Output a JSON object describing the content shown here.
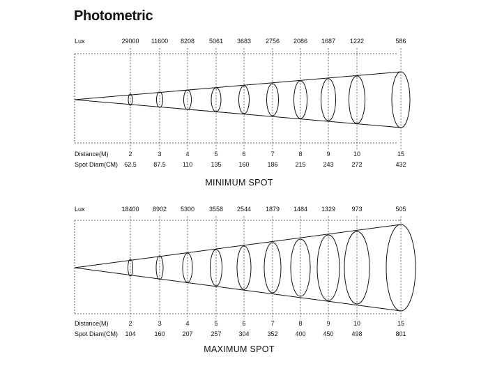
{
  "title": "Photometric",
  "row_labels": {
    "lux": "Lux",
    "distance": "Distance(M)",
    "spot": "Spot Diam(CM)"
  },
  "diagrams": [
    {
      "caption": "MINIMUM SPOT",
      "lux": [
        "29000",
        "11600",
        "8208",
        "5061",
        "3683",
        "2756",
        "2086",
        "1687",
        "1222",
        "586"
      ],
      "distance": [
        "2",
        "3",
        "4",
        "5",
        "6",
        "7",
        "8",
        "9",
        "10",
        "15"
      ],
      "spot": [
        "62.5",
        "87.5",
        "110",
        "135",
        "160",
        "186",
        "215",
        "243",
        "272",
        "432"
      ]
    },
    {
      "caption": "MAXIMUM SPOT",
      "lux": [
        "18400",
        "8902",
        "5300",
        "3558",
        "2544",
        "1879",
        "1484",
        "1329",
        "973",
        "505"
      ],
      "distance": [
        "2",
        "3",
        "4",
        "5",
        "6",
        "7",
        "8",
        "9",
        "10",
        "15"
      ],
      "spot": [
        "104",
        "160",
        "207",
        "257",
        "304",
        "352",
        "400",
        "450",
        "498",
        "801"
      ]
    }
  ]
}
